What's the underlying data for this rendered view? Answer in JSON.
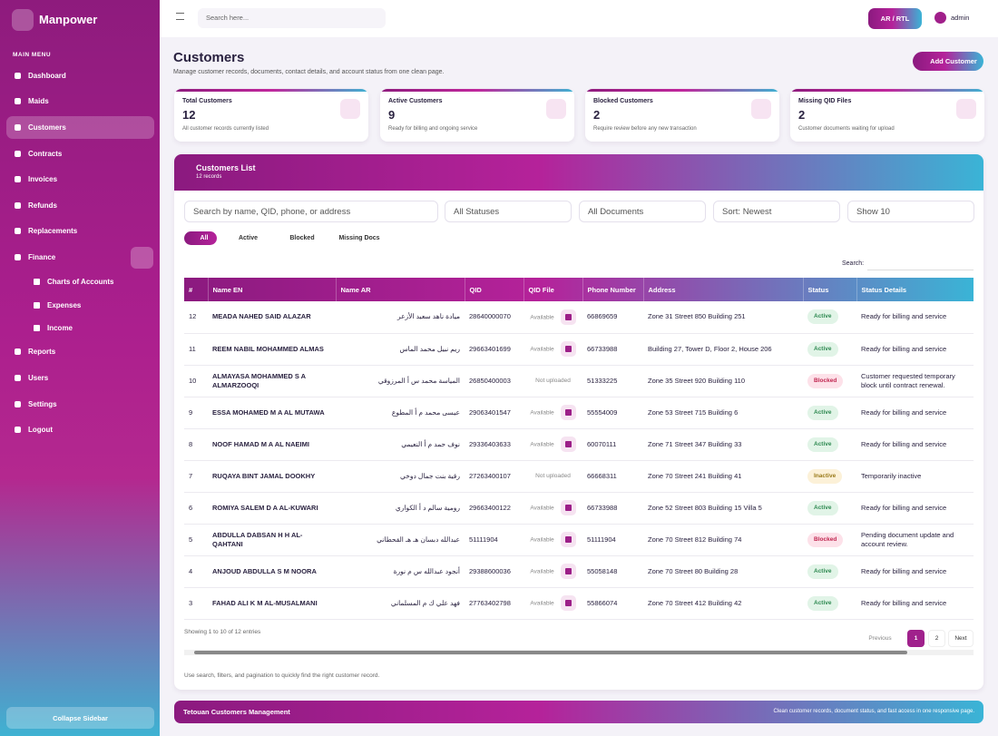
{
  "sidebar": {
    "brand": "Manpower",
    "section": "MAIN MENU",
    "items": [
      "Dashboard",
      "Maids",
      "Customers",
      "Contracts",
      "Invoices",
      "Refunds",
      "Replacements",
      "Finance",
      "Reports",
      "Users",
      "Settings",
      "Logout"
    ],
    "finance_children": [
      "Charts of Accounts",
      "Expenses",
      "Income"
    ],
    "collapse": "Collapse Sidebar"
  },
  "topbar": {
    "search_placeholder": "Search here...",
    "lang_button": "AR / RTL",
    "user": "admin"
  },
  "header": {
    "title": "Customers",
    "subtitle": "Manage customer records, documents, contact details, and account status from one clean page.",
    "add_button": "Add Customer"
  },
  "stats": [
    {
      "label": "Total Customers",
      "value": 12,
      "note": "All customer records currently listed"
    },
    {
      "label": "Active Customers",
      "value": 9,
      "note": "Ready for billing and ongoing service"
    },
    {
      "label": "Blocked Customers",
      "value": 2,
      "note": "Require review before any new transaction"
    },
    {
      "label": "Missing QID Files",
      "value": 2,
      "note": "Customer documents waiting for upload"
    }
  ],
  "panel": {
    "title": "Customers List",
    "count": "12 records",
    "search_placeholder": "Search by name, QID, phone, or address",
    "filters": [
      "All Statuses",
      "All Documents",
      "Sort: Newest",
      "Show 10"
    ],
    "chips": [
      "All",
      "Active",
      "Blocked",
      "Missing Docs"
    ],
    "table_search_label": "Search:",
    "columns": [
      "#",
      "Name EN",
      "Name AR",
      "QID",
      "QID File",
      "Phone Number",
      "Address",
      "Status",
      "Status Details"
    ],
    "rows": [
      [
        12,
        "MEADA NAHED SAID ALAZAR",
        "ميادة ناهد سعيد الأزعر",
        "28640000070",
        "Available",
        "66869659",
        "Zone 31 Street 850 Building 251",
        "Active",
        "Ready for billing and service"
      ],
      [
        11,
        "REEM NABIL MOHAMMED ALMAS",
        "ريم نبيل محمد الماس",
        "29663401699",
        "Available",
        "66733988",
        "Building 27, Tower D, Floor 2, House 206",
        "Active",
        "Ready for billing and service"
      ],
      [
        10,
        "ALMAYASA MOHAMMED S A ALMARZOOQI",
        "المياسة محمد س أ المرزوقي",
        "26850400003",
        "Not uploaded",
        "51333225",
        "Zone 35 Street 920 Building 110",
        "Blocked",
        "Customer requested temporary block until contract renewal."
      ],
      [
        9,
        "ESSA MOHAMED M A AL MUTAWA",
        "عيسى محمد م أ المطوع",
        "29063401547",
        "Available",
        "55554009",
        "Zone 53 Street 715 Building 6",
        "Active",
        "Ready for billing and service"
      ],
      [
        8,
        "NOOF HAMAD M A AL NAEIMI",
        "نوف حمد م أ النعيمي",
        "29336403633",
        "Available",
        "60070111",
        "Zone 71 Street 347 Building 33",
        "Active",
        "Ready for billing and service"
      ],
      [
        7,
        "RUQAYA BINT JAMAL DOOKHY",
        "رقية بنت جمال دوخي",
        "27263400107",
        "Not uploaded",
        "66668311",
        "Zone 70 Street 241 Building 41",
        "Inactive",
        "Temporarily inactive"
      ],
      [
        6,
        "ROMIYA SALEM D A AL-KUWARI",
        "رومية سالم د أ الكواري",
        "29663400122",
        "Available",
        "66733988",
        "Zone 52 Street 803 Building 15 Villa 5",
        "Active",
        "Ready for billing and service"
      ],
      [
        5,
        "ABDULLA DABSAN H H AL-QAHTANI",
        "عبدالله دبسان هـ هـ القحطاني",
        "51111904",
        "Available",
        "51111904",
        "Zone 70 Street 812 Building 74",
        "Blocked",
        "Pending document update and account review."
      ],
      [
        4,
        "ANJOUD ABDULLA S M NOORA",
        "أنجود عبدالله س م نورة",
        "29388600036",
        "Available",
        "55058148",
        "Zone 70 Street 80 Building 28",
        "Active",
        "Ready for billing and service"
      ],
      [
        3,
        "FAHAD ALI K M AL-MUSALMANI",
        "فهد علي ك م المسلماني",
        "27763402798",
        "Available",
        "55866074",
        "Zone 70 Street 412 Building 42",
        "Active",
        "Ready for billing and service"
      ]
    ],
    "info": "Showing 1 to 10 of 12 entries",
    "pagination": [
      "Previous",
      "1",
      "2",
      "Next"
    ],
    "hint": "Use search, filters, and pagination to quickly find the right customer record."
  },
  "footer": {
    "left": "Tetouan Customers Management",
    "right": "Clean customer records, document status, and fast access in one responsive page."
  }
}
